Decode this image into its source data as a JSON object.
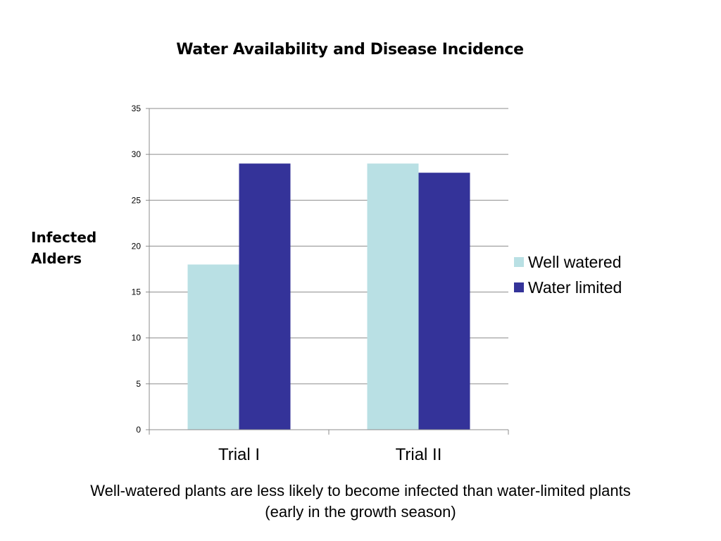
{
  "chart_data": {
    "type": "bar",
    "title": "Water Availability and Disease Incidence",
    "ylabel_lines": [
      "Infected",
      "Alders"
    ],
    "categories": [
      "Trial I",
      "Trial II"
    ],
    "series": [
      {
        "name": "Well watered",
        "color": "#b9e0e4",
        "values": [
          18,
          29
        ]
      },
      {
        "name": "Water limited",
        "color": "#343399",
        "values": [
          29,
          28
        ]
      }
    ],
    "ylim": [
      0,
      35
    ],
    "yticks": [
      0,
      5,
      10,
      15,
      20,
      25,
      30,
      35
    ],
    "grid": true,
    "legend_position": "right"
  },
  "caption_lines": [
    "Well-watered plants are less likely to become infected than water-limited plants",
    "(early in the growth season)"
  ]
}
